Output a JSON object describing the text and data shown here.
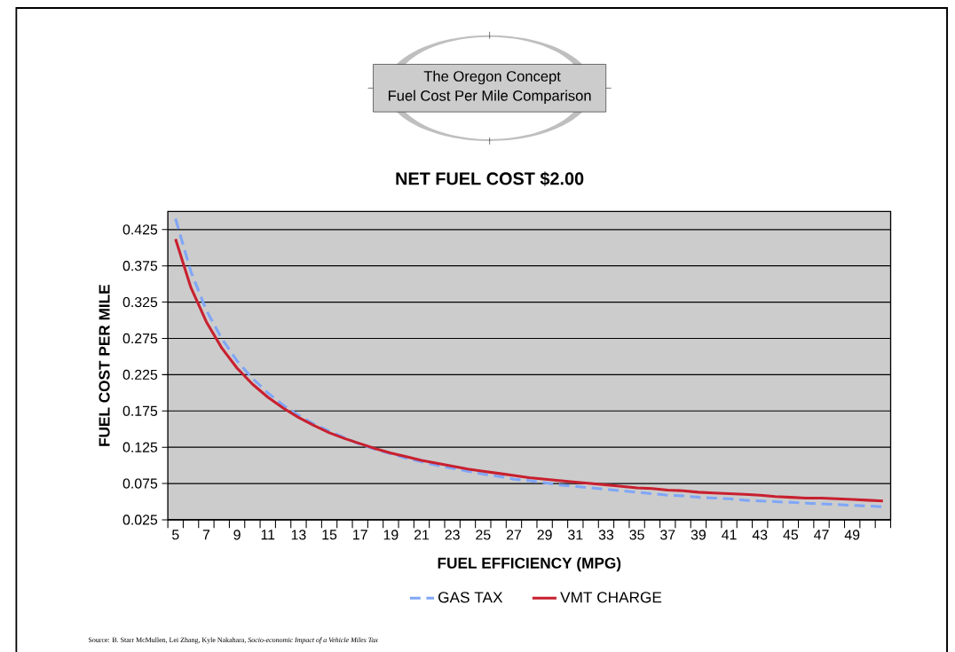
{
  "chart_data": {
    "type": "line",
    "title": "NET FUEL COST $2.00",
    "xlabel": "FUEL EFFICIENCY (MPG)",
    "ylabel": "FUEL COST PER MILE",
    "annotations": [
      "The Oregon Concept",
      "Fuel Cost Per Mile Comparison",
      "Source:  B. Starr McMullen, Lei Zhang, Kyle Nakahara, *Socio-economic Impact of a Vehicle Miles Tax*"
    ],
    "x": [
      5,
      6,
      7,
      8,
      9,
      10,
      11,
      12,
      13,
      14,
      15,
      16,
      17,
      18,
      19,
      20,
      21,
      22,
      23,
      24,
      25,
      26,
      27,
      28,
      29,
      30,
      31,
      32,
      33,
      34,
      35,
      36,
      37,
      38,
      39,
      40,
      41,
      42,
      43,
      44,
      45,
      46,
      47,
      48,
      49,
      50,
      51
    ],
    "series": [
      {
        "name": "GAS TAX",
        "color": "#7fa6f7",
        "line_style": "dashed",
        "values": [
          0.44,
          0.367,
          0.314,
          0.275,
          0.244,
          0.22,
          0.2,
          0.183,
          0.169,
          0.157,
          0.147,
          0.138,
          0.129,
          0.122,
          0.116,
          0.11,
          0.105,
          0.1,
          0.096,
          0.092,
          0.088,
          0.085,
          0.081,
          0.079,
          0.076,
          0.073,
          0.071,
          0.069,
          0.067,
          0.065,
          0.063,
          0.061,
          0.059,
          0.058,
          0.056,
          0.055,
          0.054,
          0.052,
          0.051,
          0.05,
          0.049,
          0.048,
          0.047,
          0.046,
          0.045,
          0.044,
          0.043
        ]
      },
      {
        "name": "VMT CHARGE",
        "color": "#c8202f",
        "line_style": "solid",
        "values": [
          0.412,
          0.345,
          0.298,
          0.262,
          0.234,
          0.212,
          0.194,
          0.179,
          0.166,
          0.155,
          0.145,
          0.137,
          0.13,
          0.123,
          0.117,
          0.112,
          0.107,
          0.103,
          0.099,
          0.095,
          0.092,
          0.089,
          0.086,
          0.083,
          0.081,
          0.079,
          0.077,
          0.075,
          0.073,
          0.071,
          0.069,
          0.068,
          0.066,
          0.065,
          0.063,
          0.062,
          0.061,
          0.06,
          0.059,
          0.057,
          0.056,
          0.055,
          0.055,
          0.054,
          0.053,
          0.052,
          0.051
        ]
      }
    ],
    "xlim": [
      4.5,
      51.5
    ],
    "xticks": [
      5,
      7,
      9,
      11,
      13,
      15,
      17,
      19,
      21,
      23,
      25,
      27,
      29,
      31,
      33,
      35,
      37,
      39,
      41,
      43,
      45,
      47,
      49,
      {
        "value": 4.5,
        "label": null
      },
      {
        "value": 5.5,
        "label": null
      },
      {
        "value": 6.5,
        "label": null
      },
      {
        "value": 7.5,
        "label": null
      },
      {
        "value": 8.5,
        "label": null
      },
      {
        "value": 9.5,
        "label": null
      },
      {
        "value": 10.5,
        "label": null
      },
      {
        "value": 11.5,
        "label": null
      },
      {
        "value": 12.5,
        "label": null
      },
      {
        "value": 13.5,
        "label": null
      },
      {
        "value": 14.5,
        "label": null
      },
      {
        "value": 15.5,
        "label": null
      },
      {
        "value": 16.5,
        "label": null
      },
      {
        "value": 17.5,
        "label": null
      },
      {
        "value": 18.5,
        "label": null
      },
      {
        "value": 19.5,
        "label": null
      },
      {
        "value": 20.5,
        "label": null
      },
      {
        "value": 21.5,
        "label": null
      },
      {
        "value": 22.5,
        "label": null
      },
      {
        "value": 23.5,
        "label": null
      },
      {
        "value": 24.5,
        "label": null
      },
      {
        "value": 25.5,
        "label": null
      },
      {
        "value": 26.5,
        "label": null
      },
      {
        "value": 27.5,
        "label": null
      },
      {
        "value": 28.5,
        "label": null
      },
      {
        "value": 29.5,
        "label": null
      },
      {
        "value": 30.5,
        "label": null
      },
      {
        "value": 31.5,
        "label": null
      },
      {
        "value": 32.5,
        "label": null
      },
      {
        "value": 33.5,
        "label": null
      },
      {
        "value": 34.5,
        "label": null
      },
      {
        "value": 35.5,
        "label": null
      },
      {
        "value": 36.5,
        "label": null
      },
      {
        "value": 37.5,
        "label": null
      },
      {
        "value": 38.5,
        "label": null
      },
      {
        "value": 39.5,
        "label": null
      },
      {
        "value": 40.5,
        "label": null
      },
      {
        "value": 41.5,
        "label": null
      },
      {
        "value": 42.5,
        "label": null
      },
      {
        "value": 43.5,
        "label": null
      },
      {
        "value": 44.5,
        "label": null
      },
      {
        "value": 45.5,
        "label": null
      },
      {
        "value": 46.5,
        "label": null
      },
      {
        "value": 47.5,
        "label": null
      },
      {
        "value": 48.5,
        "label": null
      },
      {
        "value": 49.5,
        "label": null
      },
      {
        "value": 50.5,
        "label": null
      },
      {
        "value": 51.5,
        "label": null
      }
    ],
    "ylim": [
      0.025,
      0.45
    ],
    "yticks": [
      0.025,
      0.075,
      0.125,
      0.175,
      0.225,
      0.275,
      0.325,
      0.375,
      0.425
    ],
    "grid": "y",
    "legend": "bottom",
    "marker": "none"
  }
}
